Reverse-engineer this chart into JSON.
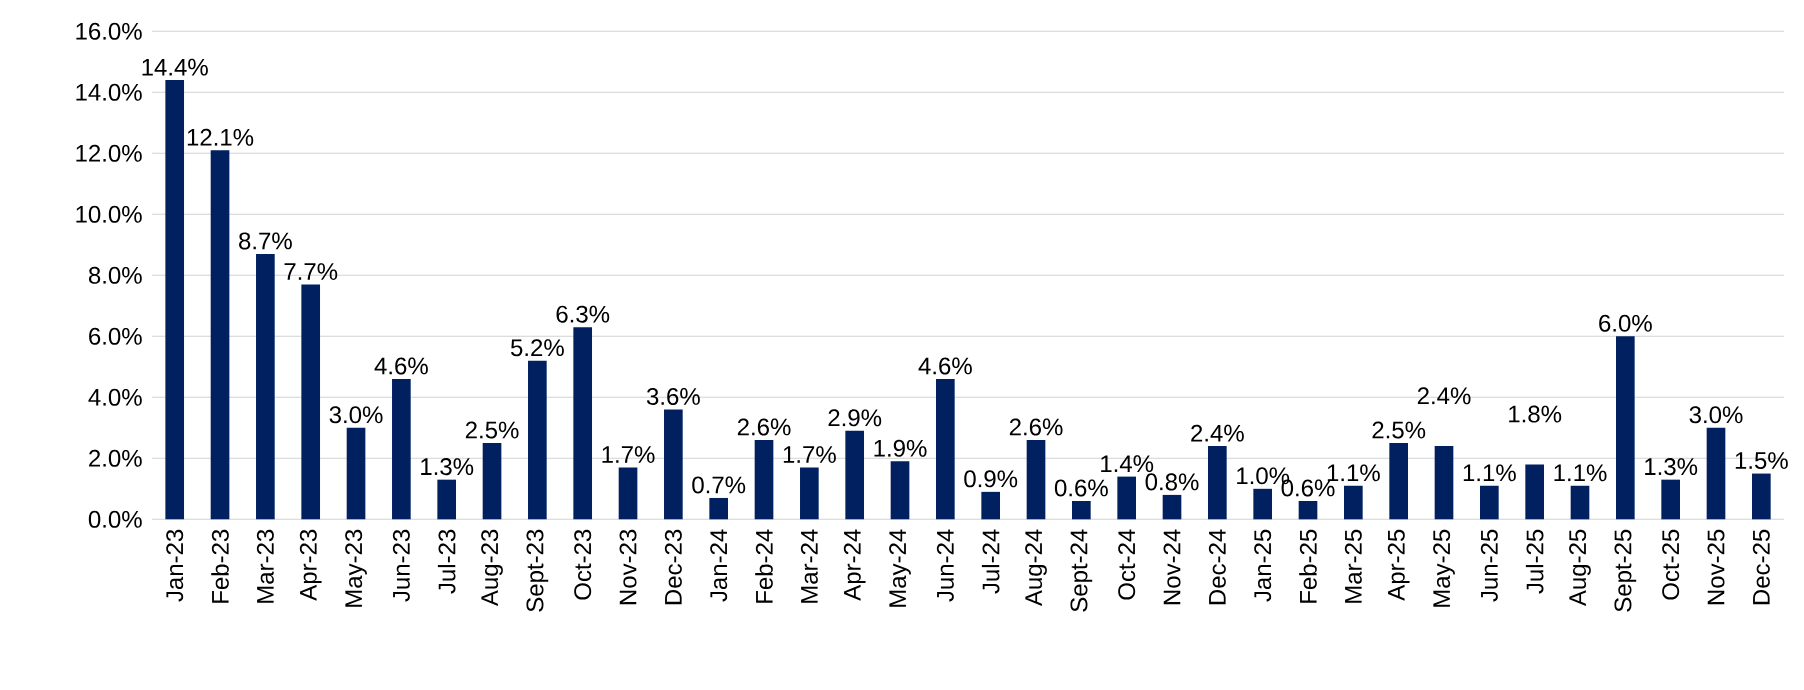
{
  "chart_data": {
    "type": "bar",
    "categories": [
      "Jan-23",
      "Feb-23",
      "Mar-23",
      "Apr-23",
      "May-23",
      "Jun-23",
      "Jul-23",
      "Aug-23",
      "Sept-23",
      "Oct-23",
      "Nov-23",
      "Dec-23",
      "Jan-24",
      "Feb-24",
      "Mar-24",
      "Apr-24",
      "May-24",
      "Jun-24",
      "Jul-24",
      "Aug-24",
      "Sept-24",
      "Oct-24",
      "Nov-24",
      "Dec-24",
      "Jan-25",
      "Feb-25",
      "Mar-25",
      "Apr-25",
      "May-25",
      "Jun-25",
      "Jul-25",
      "Aug-25",
      "Sept-25",
      "Oct-25",
      "Nov-25",
      "Dec-25"
    ],
    "values": [
      14.4,
      12.1,
      8.7,
      7.7,
      3.0,
      4.6,
      1.3,
      2.5,
      5.2,
      6.3,
      1.7,
      3.6,
      0.7,
      2.6,
      1.7,
      2.9,
      1.9,
      4.6,
      0.9,
      2.6,
      0.6,
      1.4,
      0.8,
      2.4,
      1.0,
      0.6,
      1.1,
      2.5,
      2.4,
      1.1,
      1.8,
      1.1,
      6.0,
      1.3,
      3.0,
      1.5
    ],
    "value_labels": [
      "14.4%",
      "12.1%",
      "8.7%",
      "7.7%",
      "3.0%",
      "4.6%",
      "1.3%",
      "2.5%",
      "5.2%",
      "6.3%",
      "1.7%",
      "3.6%",
      "0.7%",
      "2.6%",
      "1.7%",
      "2.9%",
      "1.9%",
      "4.6%",
      "0.9%",
      "2.6%",
      "0.6%",
      "1.4%",
      "0.8%",
      "2.4%",
      "1.0%",
      "0.6%",
      "1.1%",
      "2.5%",
      "2.4%",
      "1.1%",
      "1.8%",
      "1.1%",
      "6.0%",
      "1.3%",
      "3.0%",
      "1.5%"
    ],
    "color": "#002060",
    "ylim": [
      0,
      16
    ],
    "yticks": [
      {
        "value": 0,
        "label": "0.0%"
      },
      {
        "value": 2,
        "label": "2.0%"
      },
      {
        "value": 4,
        "label": "4.0%"
      },
      {
        "value": 6,
        "label": "6.0%"
      },
      {
        "value": 8,
        "label": "8.0%"
      },
      {
        "value": 10,
        "label": "10.0%"
      },
      {
        "value": 12,
        "label": "12.0%"
      },
      {
        "value": 14,
        "label": "14.0%"
      },
      {
        "value": 16,
        "label": "16.0%"
      }
    ],
    "grid": "y"
  }
}
